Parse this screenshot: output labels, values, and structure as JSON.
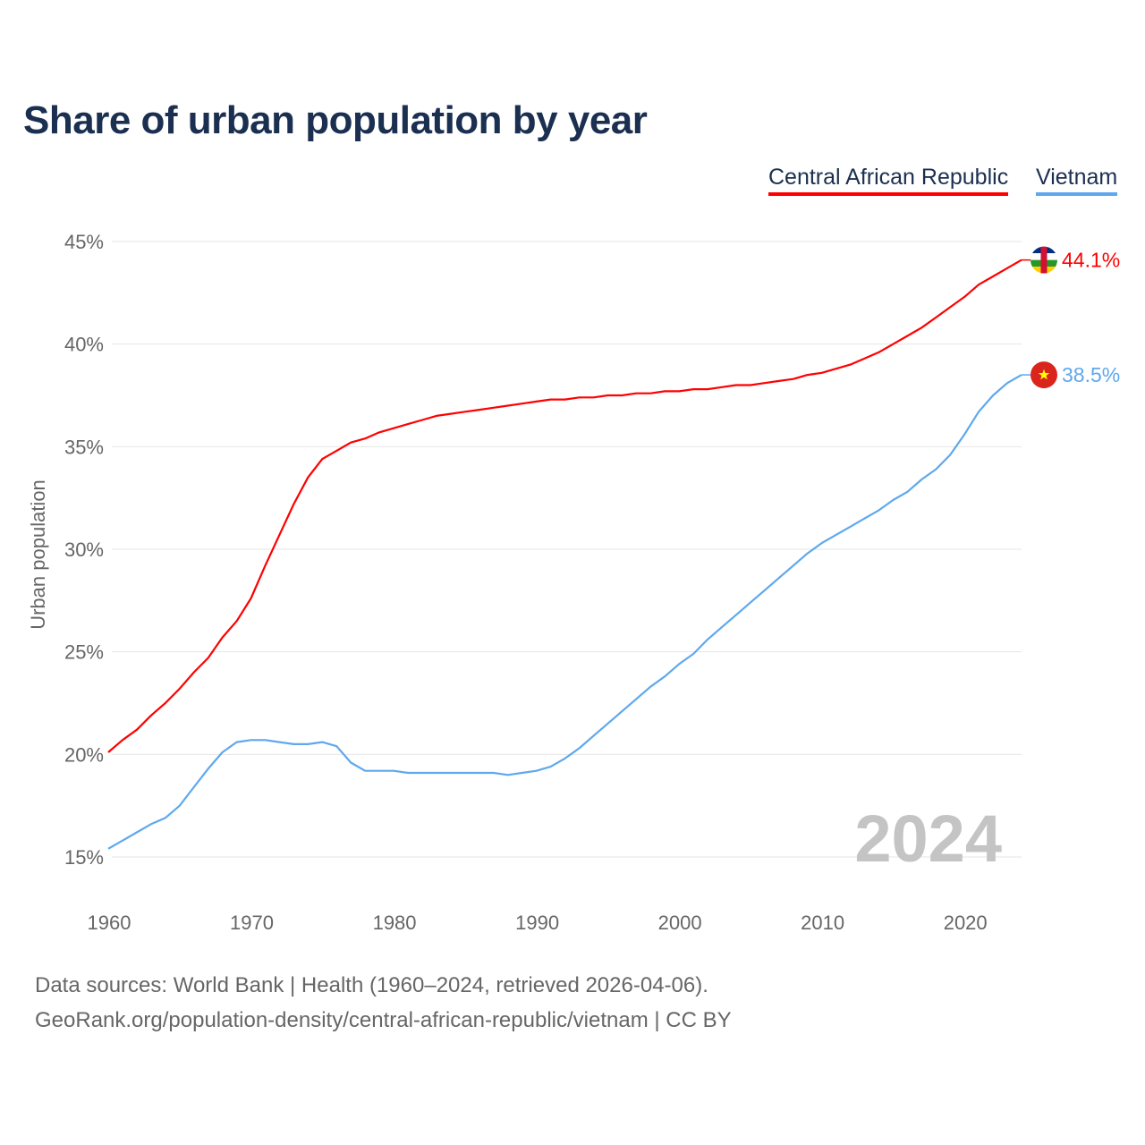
{
  "title": "Share of urban population by year",
  "footer": {
    "line1": "Data sources: World Bank | Health (1960–2024, retrieved 2026-04-06).",
    "line2": "GeoRank.org/population-density/central-african-republic/vietnam | CC BY"
  },
  "chart_data": {
    "type": "line",
    "title": "Share of urban population by year",
    "xlabel": "",
    "ylabel": "Urban population",
    "xlim": [
      1960,
      2024
    ],
    "ylim": [
      15,
      45
    ],
    "y_ticks": [
      "15%",
      "20%",
      "25%",
      "30%",
      "35%",
      "40%",
      "45%"
    ],
    "y_tick_values": [
      15,
      20,
      25,
      30,
      35,
      40,
      45
    ],
    "x_ticks": [
      "1960",
      "1970",
      "1980",
      "1990",
      "2000",
      "2010",
      "2020"
    ],
    "x_tick_values": [
      1960,
      1970,
      1980,
      1990,
      2000,
      2010,
      2020
    ],
    "grid": true,
    "legend_placement": "top-right",
    "watermark_year": "2024",
    "x": [
      1960,
      1961,
      1962,
      1963,
      1964,
      1965,
      1966,
      1967,
      1968,
      1969,
      1970,
      1971,
      1972,
      1973,
      1974,
      1975,
      1976,
      1977,
      1978,
      1979,
      1980,
      1981,
      1982,
      1983,
      1984,
      1985,
      1986,
      1987,
      1988,
      1989,
      1990,
      1991,
      1992,
      1993,
      1994,
      1995,
      1996,
      1997,
      1998,
      1999,
      2000,
      2001,
      2002,
      2003,
      2004,
      2005,
      2006,
      2007,
      2008,
      2009,
      2010,
      2011,
      2012,
      2013,
      2014,
      2015,
      2016,
      2017,
      2018,
      2019,
      2020,
      2021,
      2022,
      2023,
      2024
    ],
    "series": [
      {
        "name": "Central African Republic",
        "color": "#ff0000",
        "end_label": "44.1%",
        "flag": "central-african-republic-flag",
        "values": [
          20.1,
          20.7,
          21.2,
          21.9,
          22.5,
          23.2,
          24.0,
          24.7,
          25.7,
          26.5,
          27.6,
          29.2,
          30.7,
          32.2,
          33.5,
          34.4,
          34.8,
          35.2,
          35.4,
          35.7,
          35.9,
          36.1,
          36.3,
          36.5,
          36.6,
          36.7,
          36.8,
          36.9,
          37.0,
          37.1,
          37.2,
          37.3,
          37.3,
          37.4,
          37.4,
          37.5,
          37.5,
          37.6,
          37.6,
          37.7,
          37.7,
          37.8,
          37.8,
          37.9,
          38.0,
          38.0,
          38.1,
          38.2,
          38.3,
          38.5,
          38.6,
          38.8,
          39.0,
          39.3,
          39.6,
          40.0,
          40.4,
          40.8,
          41.3,
          41.8,
          42.3,
          42.9,
          43.3,
          43.7,
          44.1
        ]
      },
      {
        "name": "Vietnam",
        "color": "#5ea8ee",
        "end_label": "38.5%",
        "flag": "vietnam-flag",
        "values": [
          15.4,
          15.8,
          16.2,
          16.6,
          16.9,
          17.5,
          18.4,
          19.3,
          20.1,
          20.6,
          20.7,
          20.7,
          20.6,
          20.5,
          20.5,
          20.6,
          20.4,
          19.6,
          19.2,
          19.2,
          19.2,
          19.1,
          19.1,
          19.1,
          19.1,
          19.1,
          19.1,
          19.1,
          19.0,
          19.1,
          19.2,
          19.4,
          19.8,
          20.3,
          20.9,
          21.5,
          22.1,
          22.7,
          23.3,
          23.8,
          24.4,
          24.9,
          25.6,
          26.2,
          26.8,
          27.4,
          28.0,
          28.6,
          29.2,
          29.8,
          30.3,
          30.7,
          31.1,
          31.5,
          31.9,
          32.4,
          32.8,
          33.4,
          33.9,
          34.6,
          35.6,
          36.7,
          37.5,
          38.1,
          38.5
        ]
      }
    ]
  }
}
